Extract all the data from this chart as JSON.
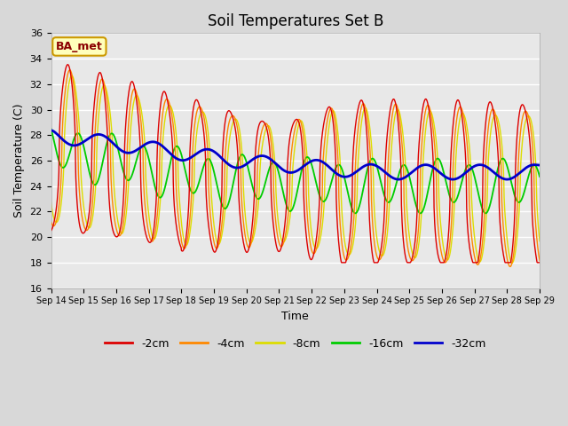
{
  "title": "Soil Temperatures Set B",
  "xlabel": "Time",
  "ylabel": "Soil Temperature (C)",
  "ylim": [
    16,
    36
  ],
  "yticks": [
    16,
    18,
    20,
    22,
    24,
    26,
    28,
    30,
    32,
    34,
    36
  ],
  "fig_bg_color": "#d8d8d8",
  "plot_bg_color": "#e8e8e8",
  "legend_label": "BA_met",
  "series_labels": [
    "-2cm",
    "-4cm",
    "-8cm",
    "-16cm",
    "-32cm"
  ],
  "series_colors": [
    "#dd0000",
    "#ff8800",
    "#dddd00",
    "#00cc00",
    "#0000cc"
  ],
  "x_tick_labels": [
    "Sep 14",
    "Sep 15",
    "Sep 16",
    "Sep 17",
    "Sep 18",
    "Sep 19",
    "Sep 20",
    "Sep 21",
    "Sep 22",
    "Sep 23",
    "Sep 24",
    "Sep 25",
    "Sep 26",
    "Sep 27",
    "Sep 28",
    "Sep 29"
  ]
}
